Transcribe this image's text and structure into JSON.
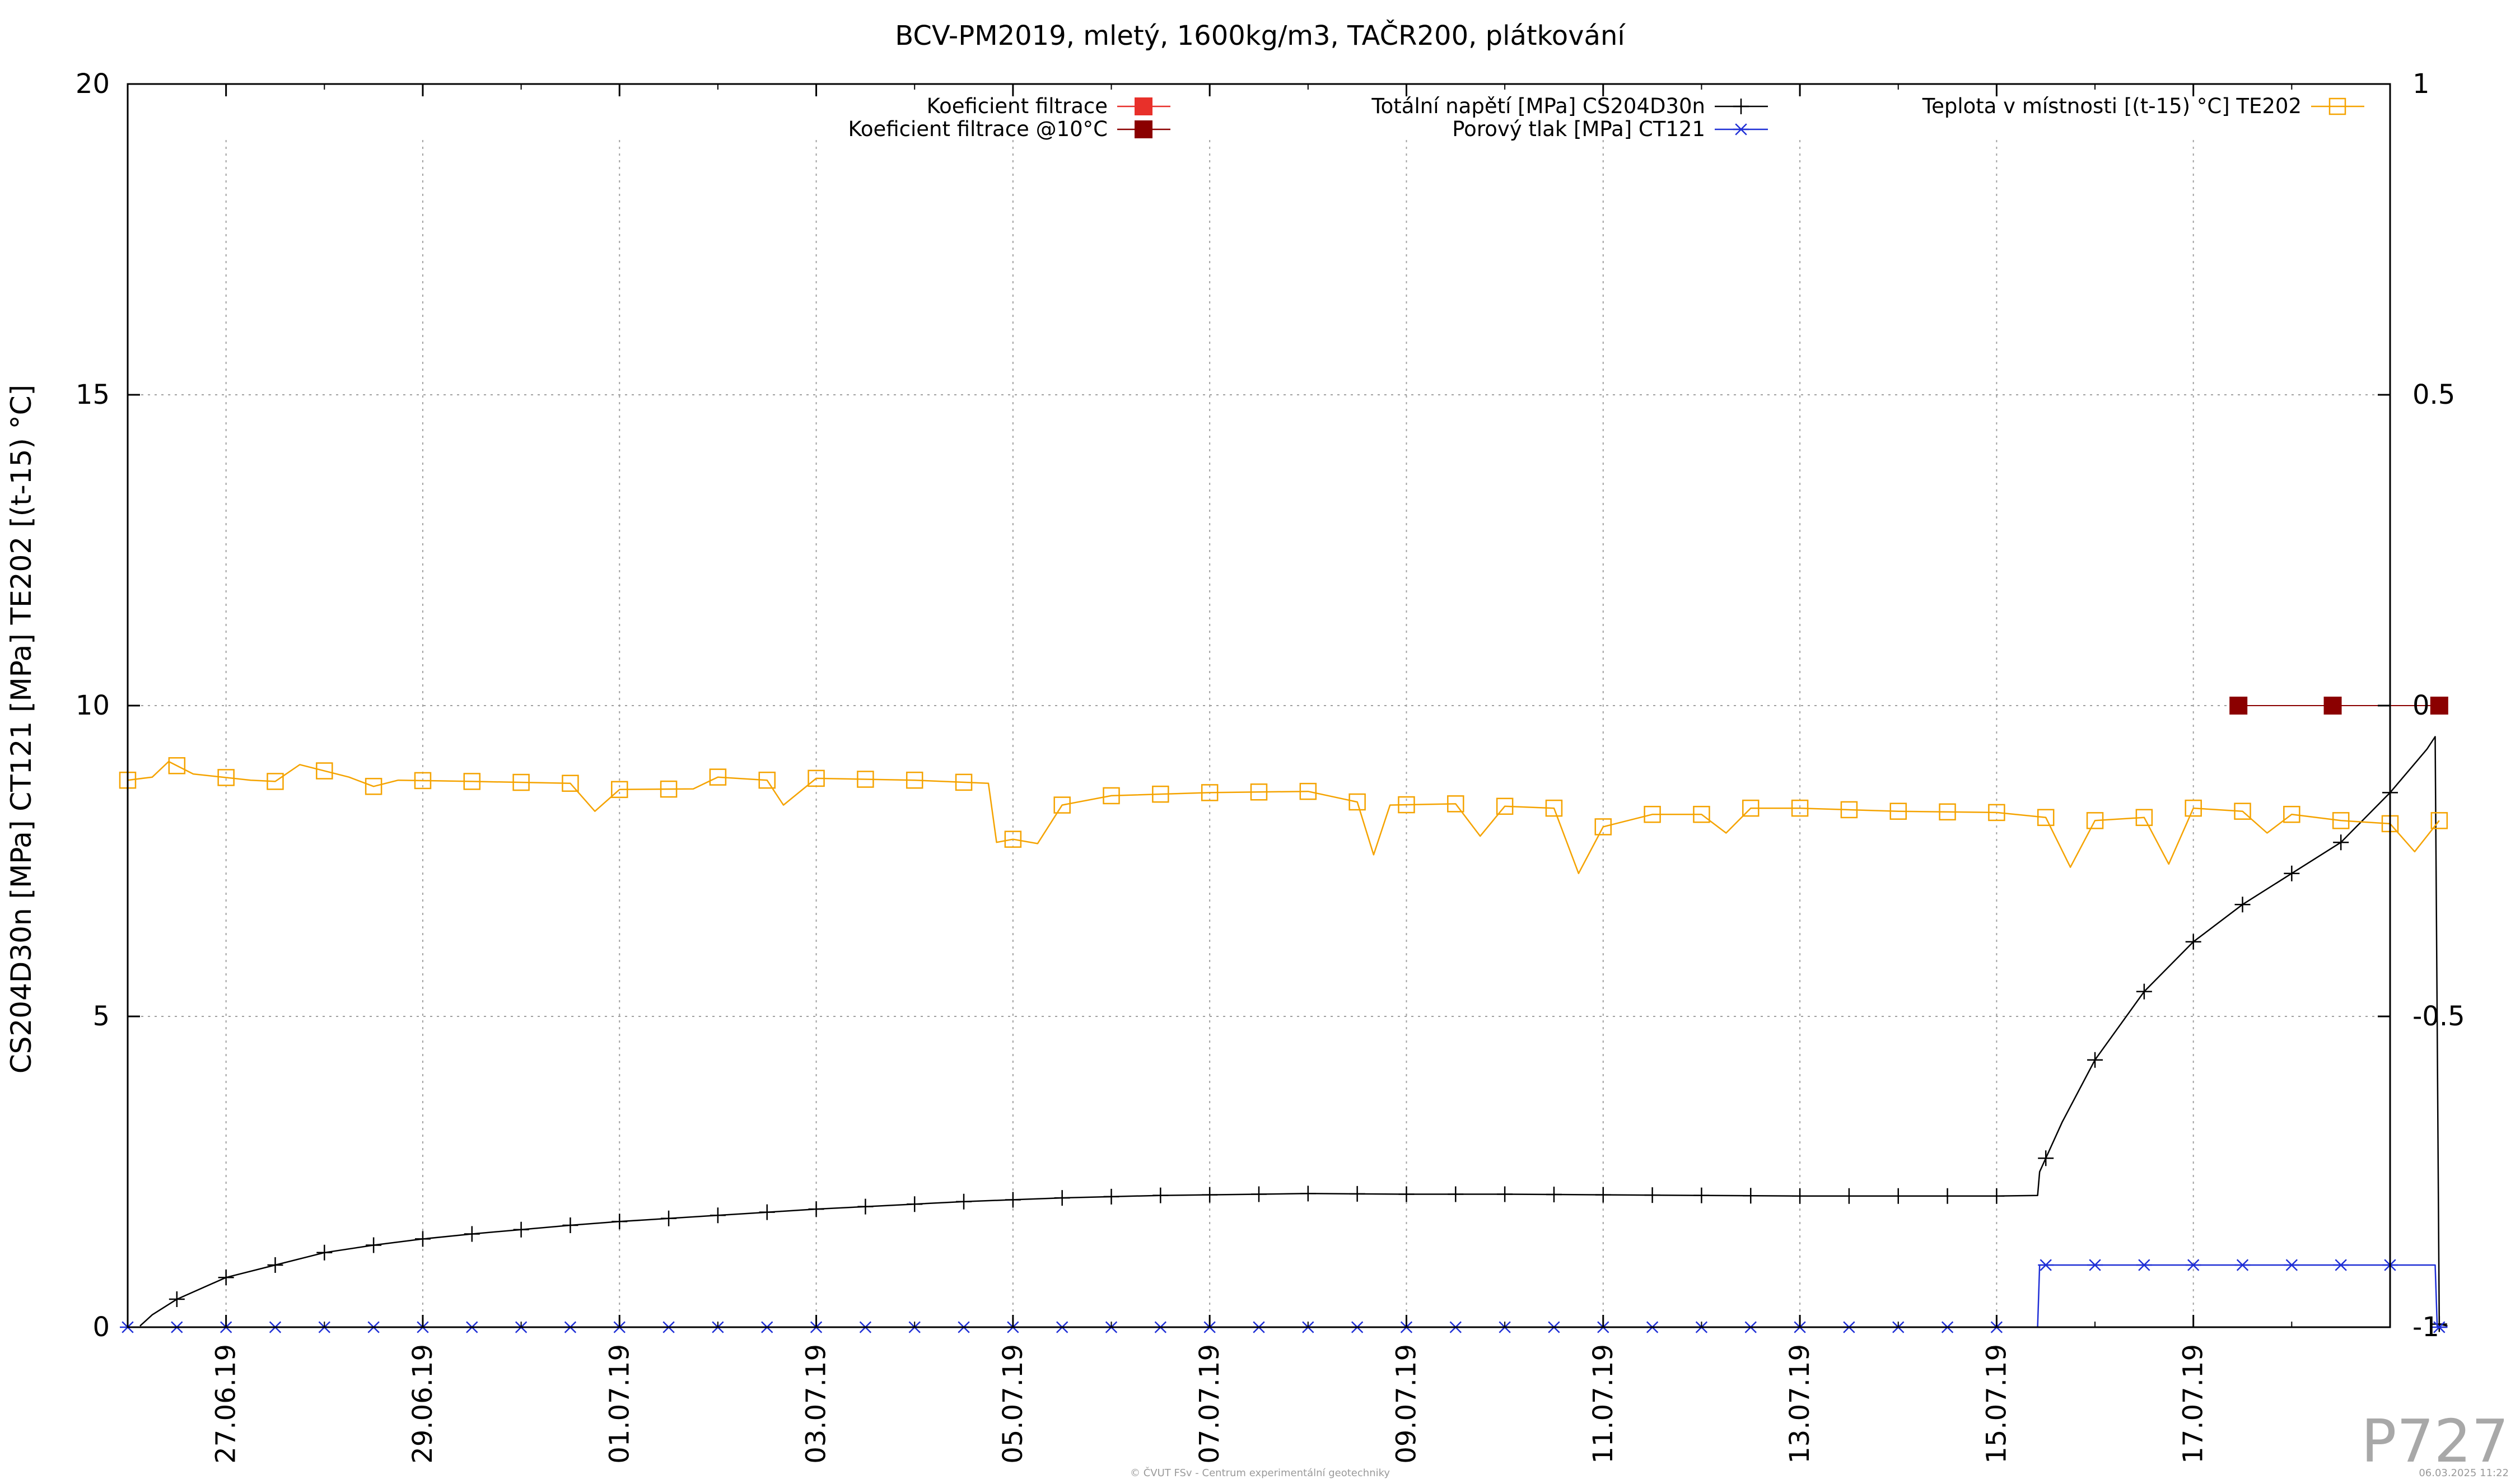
{
  "chart_data": {
    "type": "line",
    "title": "BCV-PM2019, mletý, 1600kg/m3, TAČR200, plátkování",
    "ylabel": "CS204D30n [MPa] CT121 [MPa] TE202 [(t-15) °C]",
    "ylim": [
      0,
      20
    ],
    "y_ticks": [
      "0",
      "5",
      "10",
      "15",
      "20"
    ],
    "y2lim": [
      -1,
      1
    ],
    "y2_ticks": [
      "-1",
      "-0.5",
      "0",
      "0.5",
      "1"
    ],
    "x_range": [
      "2019-06-26",
      "2019-07-19"
    ],
    "x_ticks": [
      "27.06.19",
      "29.06.19",
      "01.07.19",
      "03.07.19",
      "05.07.19",
      "07.07.19",
      "09.07.19",
      "11.07.19",
      "13.07.19",
      "15.07.19",
      "17.07.19"
    ],
    "x_tick_dates": [
      "2019-06-27",
      "2019-06-29",
      "2019-07-01",
      "2019-07-03",
      "2019-07-05",
      "2019-07-07",
      "2019-07-09",
      "2019-07-11",
      "2019-07-13",
      "2019-07-15",
      "2019-07-17"
    ],
    "grid": true,
    "legend_position": "top",
    "series": [
      {
        "name": "Koeficient filtrace",
        "axis": "y2",
        "color": "#e8302a",
        "marker": "filled-square",
        "points": []
      },
      {
        "name": "Koeficient filtrace @10°C",
        "axis": "y2",
        "color": "#8b0000",
        "marker": "filled-square",
        "points": [
          [
            "2019-07-17 11:00",
            0
          ],
          [
            "2019-07-18 10:00",
            0
          ],
          [
            "2019-07-19 12:00",
            0
          ]
        ]
      },
      {
        "name": "Totální napětí [MPa] CS204D30n",
        "axis": "y",
        "color": "#000000",
        "marker": "plus",
        "points": [
          [
            "2019-06-26 03:00",
            0.02
          ],
          [
            "2019-06-26 06:00",
            0.2
          ],
          [
            "2019-06-26 12:00",
            0.45
          ],
          [
            "2019-06-27 00:00",
            0.8
          ],
          [
            "2019-06-27 12:00",
            1.0
          ],
          [
            "2019-06-28 00:00",
            1.2
          ],
          [
            "2019-06-28 12:00",
            1.32
          ],
          [
            "2019-06-29 00:00",
            1.42
          ],
          [
            "2019-06-29 12:00",
            1.5
          ],
          [
            "2019-06-30 00:00",
            1.57
          ],
          [
            "2019-06-30 12:00",
            1.64
          ],
          [
            "2019-07-01 00:00",
            1.7
          ],
          [
            "2019-07-01 12:00",
            1.75
          ],
          [
            "2019-07-02 00:00",
            1.8
          ],
          [
            "2019-07-02 12:00",
            1.85
          ],
          [
            "2019-07-03 00:00",
            1.9
          ],
          [
            "2019-07-03 12:00",
            1.94
          ],
          [
            "2019-07-04 00:00",
            1.98
          ],
          [
            "2019-07-04 12:00",
            2.02
          ],
          [
            "2019-07-05 00:00",
            2.05
          ],
          [
            "2019-07-05 12:00",
            2.08
          ],
          [
            "2019-07-06 00:00",
            2.1
          ],
          [
            "2019-07-06 12:00",
            2.12
          ],
          [
            "2019-07-07 00:00",
            2.13
          ],
          [
            "2019-07-07 12:00",
            2.14
          ],
          [
            "2019-07-08 00:00",
            2.15
          ],
          [
            "2019-07-09 00:00",
            2.14
          ],
          [
            "2019-07-10 00:00",
            2.14
          ],
          [
            "2019-07-11 00:00",
            2.13
          ],
          [
            "2019-07-12 00:00",
            2.12
          ],
          [
            "2019-07-13 00:00",
            2.11
          ],
          [
            "2019-07-14 00:00",
            2.11
          ],
          [
            "2019-07-15 00:00",
            2.11
          ],
          [
            "2019-07-15 10:00",
            2.12
          ],
          [
            "2019-07-15 10:30",
            2.5
          ],
          [
            "2019-07-15 16:00",
            3.3
          ],
          [
            "2019-07-16 00:00",
            4.3
          ],
          [
            "2019-07-16 12:00",
            5.4
          ],
          [
            "2019-07-17 00:00",
            6.2
          ],
          [
            "2019-07-17 12:00",
            6.8
          ],
          [
            "2019-07-18 00:00",
            7.3
          ],
          [
            "2019-07-18 12:00",
            7.8
          ],
          [
            "2019-07-19 00:00",
            8.6
          ],
          [
            "2019-07-19 09:00",
            9.3
          ],
          [
            "2019-07-19 11:00",
            9.5
          ],
          [
            "2019-07-19 11:30",
            4.8
          ],
          [
            "2019-07-19 12:00",
            0.05
          ],
          [
            "2019-07-19 14:00",
            0.02
          ]
        ]
      },
      {
        "name": "Porový tlak [MPa] CT121",
        "axis": "y",
        "color": "#1f2fd6",
        "marker": "asterisk",
        "points": [
          [
            "2019-06-26 00:00",
            0.0
          ],
          [
            "2019-07-15 10:00",
            0.0
          ],
          [
            "2019-07-15 10:30",
            1.0
          ],
          [
            "2019-07-19 11:00",
            1.0
          ],
          [
            "2019-07-19 11:30",
            0.0
          ],
          [
            "2019-07-19 14:00",
            0.0
          ]
        ]
      },
      {
        "name": "Teplota v místnosti [(t-15) °C] TE202",
        "axis": "y",
        "color": "#f5a300",
        "marker": "open-square",
        "points": [
          [
            "2019-06-26 00:00",
            8.8
          ],
          [
            "2019-06-26 06:00",
            8.85
          ],
          [
            "2019-06-26 10:00",
            9.1
          ],
          [
            "2019-06-26 16:00",
            8.9
          ],
          [
            "2019-06-27 06:00",
            8.8
          ],
          [
            "2019-06-27 12:00",
            8.78
          ],
          [
            "2019-06-27 18:00",
            9.05
          ],
          [
            "2019-06-28 06:00",
            8.85
          ],
          [
            "2019-06-28 12:00",
            8.7
          ],
          [
            "2019-06-28 18:00",
            8.8
          ],
          [
            "2019-06-29 12:00",
            8.78
          ],
          [
            "2019-06-30 12:00",
            8.75
          ],
          [
            "2019-06-30 18:00",
            8.3
          ],
          [
            "2019-07-01 00:00",
            8.65
          ],
          [
            "2019-07-01 18:00",
            8.66
          ],
          [
            "2019-07-02 00:00",
            8.85
          ],
          [
            "2019-07-02 12:00",
            8.8
          ],
          [
            "2019-07-02 16:00",
            8.4
          ],
          [
            "2019-07-03 00:00",
            8.83
          ],
          [
            "2019-07-04 00:00",
            8.8
          ],
          [
            "2019-07-04 18:00",
            8.75
          ],
          [
            "2019-07-04 20:00",
            7.8
          ],
          [
            "2019-07-05 00:00",
            7.85
          ],
          [
            "2019-07-05 06:00",
            7.78
          ],
          [
            "2019-07-05 12:00",
            8.4
          ],
          [
            "2019-07-06 00:00",
            8.55
          ],
          [
            "2019-07-07 00:00",
            8.6
          ],
          [
            "2019-07-08 00:00",
            8.62
          ],
          [
            "2019-07-08 12:00",
            8.45
          ],
          [
            "2019-07-08 16:00",
            7.6
          ],
          [
            "2019-07-08 20:00",
            8.4
          ],
          [
            "2019-07-09 12:00",
            8.42
          ],
          [
            "2019-07-09 18:00",
            7.9
          ],
          [
            "2019-07-10 00:00",
            8.38
          ],
          [
            "2019-07-10 12:00",
            8.35
          ],
          [
            "2019-07-10 18:00",
            7.3
          ],
          [
            "2019-07-11 00:00",
            8.05
          ],
          [
            "2019-07-11 12:00",
            8.25
          ],
          [
            "2019-07-12 00:00",
            8.25
          ],
          [
            "2019-07-12 06:00",
            7.95
          ],
          [
            "2019-07-12 12:00",
            8.35
          ],
          [
            "2019-07-13 00:00",
            8.35
          ],
          [
            "2019-07-14 00:00",
            8.3
          ],
          [
            "2019-07-15 00:00",
            8.28
          ],
          [
            "2019-07-15 12:00",
            8.2
          ],
          [
            "2019-07-15 18:00",
            7.4
          ],
          [
            "2019-07-16 00:00",
            8.15
          ],
          [
            "2019-07-16 12:00",
            8.2
          ],
          [
            "2019-07-16 18:00",
            7.45
          ],
          [
            "2019-07-17 00:00",
            8.35
          ],
          [
            "2019-07-17 12:00",
            8.3
          ],
          [
            "2019-07-17 18:00",
            7.95
          ],
          [
            "2019-07-18 00:00",
            8.25
          ],
          [
            "2019-07-18 12:00",
            8.15
          ],
          [
            "2019-07-19 00:00",
            8.1
          ],
          [
            "2019-07-19 06:00",
            7.65
          ],
          [
            "2019-07-19 12:00",
            8.15
          ]
        ]
      }
    ]
  },
  "footer": {
    "credit": "© ČVUT FSv - Centrum experimentální geotechniky",
    "plot_id": "P727",
    "timestamp": "06.03.2025 11:22"
  }
}
